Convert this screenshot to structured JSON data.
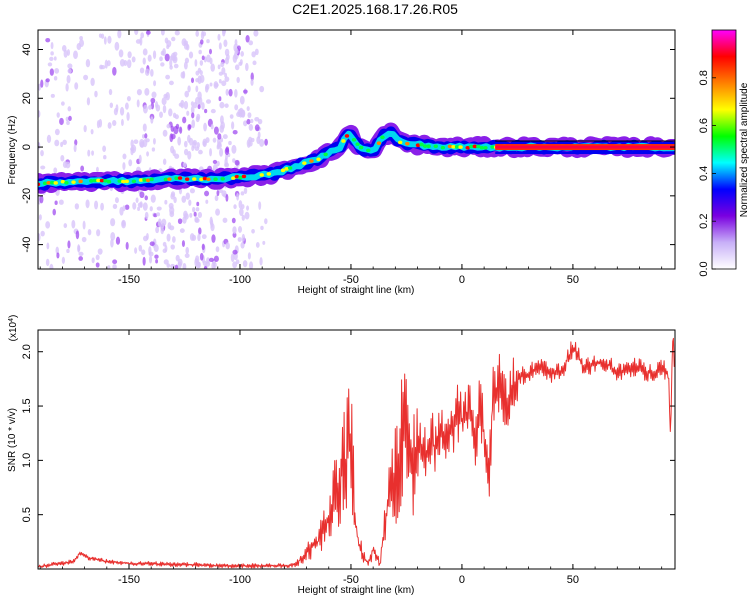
{
  "title": "C2E1.2025.168.17.26.R05",
  "chart_data": [
    {
      "type": "heatmap",
      "xlabel": "Height of straight line (km)",
      "ylabel": "Frequency (Hz)",
      "xlim": [
        -191,
        96
      ],
      "ylim": [
        -50,
        48
      ],
      "xticks": [
        -150,
        -100,
        -50,
        0,
        50
      ],
      "yticks": [
        -40,
        -20,
        0,
        20,
        40
      ],
      "colorbar": {
        "label": "Normalized spectral amplitude",
        "range": [
          0,
          1
        ],
        "ticks": [
          0.0,
          0.2,
          0.4,
          0.6,
          0.8
        ],
        "colors": [
          "#ffffff",
          "#c8b0f8",
          "#7a00e0",
          "#0000ff",
          "#00ffff",
          "#00ff00",
          "#ffff00",
          "#ff8000",
          "#ff0000",
          "#ff00ff"
        ]
      },
      "ridge": {
        "height_km": [
          -191,
          -170,
          -150,
          -130,
          -110,
          -95,
          -85,
          -75,
          -65,
          -55,
          -51,
          -47,
          -44,
          -40,
          -36,
          -32,
          -28,
          -20,
          -10,
          0,
          10,
          20,
          50,
          96
        ],
        "frequency_hz": [
          -15,
          -14,
          -14,
          -13,
          -13,
          -12,
          -11,
          -8,
          -5,
          0,
          6,
          1,
          -1,
          -2,
          4,
          6,
          2,
          1,
          0,
          0,
          0,
          0,
          0,
          0
        ]
      },
      "noise_band_km": [
        -191,
        -88
      ]
    },
    {
      "type": "line",
      "xlabel": "Height of straight line (km)",
      "ylabel": "SNR (10 * v/v)",
      "yscale_label": "(x10",
      "yscale_exp": "4",
      "xlim": [
        -191,
        96
      ],
      "ylim": [
        0,
        2.2
      ],
      "xticks": [
        -150,
        -100,
        -50,
        0,
        50
      ],
      "yticks": [
        0.5,
        1.0,
        1.5,
        2.0
      ],
      "series": [
        {
          "color": "#e8302e",
          "x": [
            -191,
            -185,
            -180,
            -175,
            -172,
            -168,
            -160,
            -150,
            -140,
            -130,
            -120,
            -110,
            -100,
            -90,
            -80,
            -75,
            -70,
            -65,
            -60,
            -55,
            -50,
            -48,
            -46,
            -44,
            -42,
            -40,
            -37,
            -35,
            -33,
            -31,
            -29,
            -27,
            -25,
            -23,
            -21,
            -20,
            -18,
            -16,
            -14,
            -12,
            -10,
            -8,
            -6,
            -4,
            -2,
            0,
            2,
            4,
            6,
            8,
            10,
            12,
            14,
            17,
            20,
            25,
            30,
            35,
            40,
            45,
            50,
            55,
            60,
            65,
            70,
            75,
            80,
            85,
            90,
            93,
            94,
            95,
            96
          ],
          "y": [
            0.02,
            0.04,
            0.05,
            0.07,
            0.15,
            0.1,
            0.07,
            0.05,
            0.05,
            0.04,
            0.04,
            0.03,
            0.03,
            0.03,
            0.03,
            0.04,
            0.15,
            0.25,
            0.45,
            0.85,
            1.15,
            0.4,
            0.2,
            0.1,
            0.05,
            0.18,
            0.05,
            0.35,
            0.6,
            0.75,
            0.95,
            1.4,
            1.55,
            1.0,
            0.9,
            1.05,
            1.15,
            1.05,
            1.25,
            1.1,
            1.25,
            1.15,
            1.35,
            1.25,
            1.45,
            1.35,
            1.4,
            1.45,
            1.05,
            1.5,
            1.25,
            0.75,
            1.6,
            1.7,
            1.55,
            1.75,
            1.8,
            1.85,
            1.8,
            1.8,
            2.05,
            1.85,
            1.9,
            1.9,
            1.8,
            1.85,
            1.85,
            1.8,
            1.85,
            1.8,
            1.2,
            2.15,
            1.8
          ]
        }
      ]
    }
  ]
}
